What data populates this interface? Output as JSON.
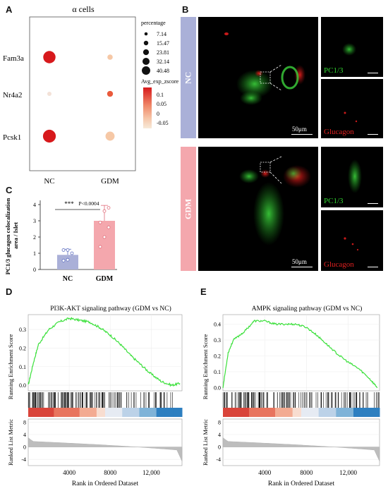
{
  "panel_labels": {
    "A": "A",
    "B": "B",
    "C": "C",
    "D": "D",
    "E": "E"
  },
  "panelA": {
    "title": "α cells",
    "genes": [
      "Fam3a",
      "Nr4a2",
      "Pcsk1"
    ],
    "groups": [
      "NC",
      "GDM"
    ],
    "legend_size_title": "percentage",
    "legend_sizes": [
      "7.14",
      "15.47",
      "23.81",
      "32.14",
      "40.48"
    ],
    "legend_color_title": "Avg_exp_zscore",
    "legend_color_ticks": [
      "0.1",
      "0.05",
      "0",
      "-0.05"
    ],
    "colors": {
      "high": "#d7191c",
      "mid": "#f4a582",
      "low": "#f7e4d4"
    }
  },
  "panelB": {
    "groups": [
      "NC",
      "GDM"
    ],
    "scale_bar": "50μm",
    "channel_labels": [
      "PC1/3",
      "Glucagon"
    ],
    "group_colors": {
      "NC": "#aab0d8",
      "GDM": "#f4a7ad"
    }
  },
  "panelC": {
    "ylabel_line1": "PC1/3 glucagon colocalization",
    "ylabel_line2": "area / Islet",
    "yticks": [
      "0",
      "1",
      "2",
      "3",
      "4"
    ],
    "significance": "***",
    "pvalue": "P<0.0004",
    "categories": [
      "NC",
      "GDM"
    ]
  },
  "panelD": {
    "title": "PI3K-AKT signaling pathway (GDM vs NC)",
    "ylabel_top": "Running Enrichment Score",
    "ylabel_bottom": "Ranked List Metric",
    "es_ticks": [
      "0.3",
      "0.2",
      "0.1",
      "0.0"
    ],
    "metric_ticks": [
      "8",
      "4",
      "0",
      "-4"
    ],
    "xticks": [
      "4000",
      "8000",
      "12,000"
    ],
    "xlabel": "Rank in Ordered Dataset"
  },
  "panelE": {
    "title": "AMPK signaling pathway (GDM vs NC)",
    "ylabel_top": "Running Enrichment Score",
    "ylabel_bottom": "Ranked List Metric",
    "es_ticks": [
      "0.4",
      "0.3",
      "0.2",
      "0.1",
      "0.0"
    ],
    "metric_ticks": [
      "8",
      "4",
      "0",
      "-4"
    ],
    "xticks": [
      "4000",
      "8000",
      "12,000"
    ],
    "xlabel": "Rank in Ordered Dataset"
  },
  "chart_data": [
    {
      "type": "scatter",
      "title": "α cells",
      "categories": [
        "NC",
        "GDM"
      ],
      "rows": [
        "Fam3a",
        "Nr4a2",
        "Pcsk1"
      ],
      "percentage": [
        [
          38,
          12
        ],
        [
          8,
          14
        ],
        [
          40,
          26
        ]
      ],
      "avg_exp_zscore": [
        [
          0.12,
          -0.04
        ],
        [
          -0.06,
          0.08
        ],
        [
          0.11,
          -0.02
        ]
      ]
    },
    {
      "type": "bar",
      "categories": [
        "NC",
        "GDM"
      ],
      "values": [
        0.9,
        3.0
      ],
      "error": [
        0.35,
        0.95
      ],
      "points": [
        [
          0.55,
          0.6,
          1.0,
          1.2,
          1.2
        ],
        [
          1.4,
          2.0,
          2.6,
          2.9,
          3.6,
          3.8
        ]
      ],
      "ylabel": "PC1/3 glucagon colocalization area / Islet",
      "ylim": [
        0,
        4
      ]
    },
    {
      "type": "line",
      "title": "PI3K-AKT signaling pathway (GDM vs NC)",
      "x": [
        0,
        500,
        1000,
        2000,
        3000,
        4000,
        5000,
        6000,
        7000,
        8000,
        9000,
        10000,
        11000,
        12000,
        13000,
        14000,
        14800
      ],
      "y": [
        0.0,
        0.12,
        0.22,
        0.3,
        0.34,
        0.36,
        0.35,
        0.34,
        0.31,
        0.27,
        0.22,
        0.16,
        0.11,
        0.06,
        0.02,
        0.0,
        0.01
      ],
      "xlabel": "Rank in Ordered Dataset",
      "ylabel": "Running Enrichment Score",
      "xlim": [
        0,
        15000
      ],
      "ylim": [
        -0.03,
        0.38
      ]
    },
    {
      "type": "line",
      "title": "AMPK signaling pathway (GDM vs NC)",
      "x": [
        0,
        500,
        1000,
        2000,
        3000,
        4000,
        5000,
        6000,
        7000,
        8000,
        9000,
        10000,
        11000,
        12000,
        13000,
        14000,
        14800
      ],
      "y": [
        0.0,
        0.22,
        0.3,
        0.35,
        0.42,
        0.42,
        0.4,
        0.4,
        0.4,
        0.38,
        0.33,
        0.27,
        0.21,
        0.16,
        0.12,
        0.06,
        0.0
      ],
      "xlabel": "Rank in Ordered Dataset",
      "ylabel": "Running Enrichment Score",
      "xlim": [
        0,
        15000
      ],
      "ylim": [
        -0.02,
        0.46
      ]
    }
  ]
}
